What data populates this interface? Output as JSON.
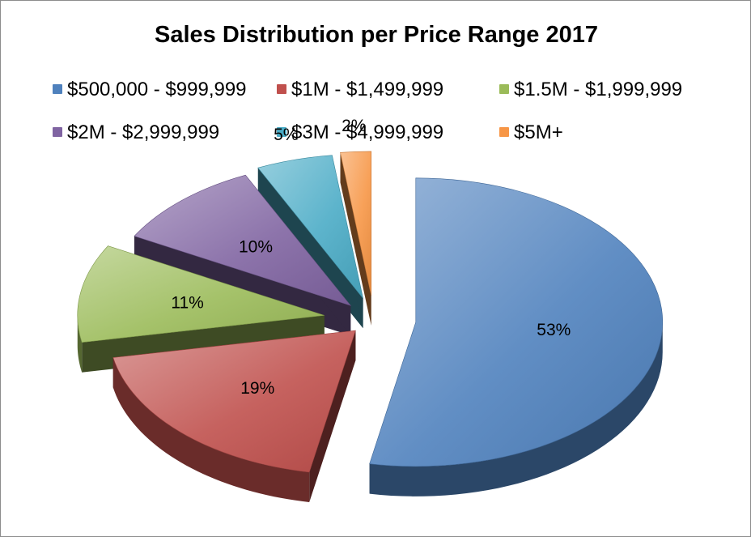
{
  "chart_data": {
    "type": "pie",
    "title": "Sales Distribution per Price Range 2017",
    "categories": [
      "$500,000 - $999,999",
      "$1M - $1,499,999",
      "$1.5M - $1,999,999",
      "$2M - $2,999,999",
      "$3M - $4,999,999",
      "$5M+"
    ],
    "values": [
      53,
      19,
      11,
      10,
      5,
      2
    ],
    "data_labels": [
      "53%",
      "19%",
      "11%",
      "10%",
      "5%",
      "2%"
    ],
    "colors": [
      "#4f81bd",
      "#c0504d",
      "#9bbb59",
      "#8064a2",
      "#4bacc6",
      "#f79646"
    ],
    "exploded": true,
    "three_d": true,
    "legend_position": "top"
  }
}
